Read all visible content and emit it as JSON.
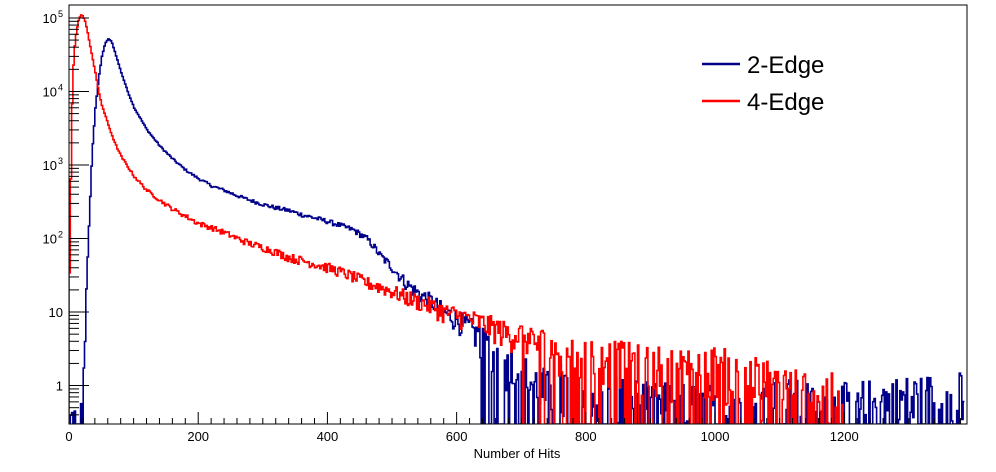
{
  "chart_data": {
    "type": "line",
    "title": "",
    "xlabel": "Number of Hits",
    "ylabel": "",
    "xlim": [
      0,
      1390
    ],
    "ylim": [
      0.3,
      150000
    ],
    "y_scale": "log",
    "grid": false,
    "legend_position": "top-right",
    "x_ticks": [
      "0",
      "200",
      "400",
      "600",
      "800",
      "1000",
      "1200"
    ],
    "y_ticks": [
      {
        "value": 1,
        "base": "1",
        "exp": ""
      },
      {
        "value": 10,
        "base": "10",
        "exp": ""
      },
      {
        "value": 100,
        "base": "10",
        "exp": "2"
      },
      {
        "value": 1000,
        "base": "10",
        "exp": "3"
      },
      {
        "value": 10000,
        "base": "10",
        "exp": "4"
      },
      {
        "value": 100000,
        "base": "10",
        "exp": "5"
      }
    ],
    "series": [
      {
        "name": "2-Edge",
        "color": "#00008b",
        "x": [
          0,
          10,
          17,
          20,
          25,
          30,
          35,
          40,
          45,
          50,
          55,
          60,
          65,
          70,
          80,
          90,
          100,
          120,
          140,
          160,
          180,
          200,
          220,
          240,
          260,
          280,
          300,
          320,
          340,
          360,
          380,
          400,
          420,
          440,
          460,
          470,
          480,
          500,
          520,
          540,
          560,
          580,
          600,
          620,
          640,
          660,
          680,
          700,
          720,
          740,
          760,
          780,
          800,
          820,
          840,
          860,
          900,
          1000,
          1100,
          1150,
          1200,
          1280,
          1385
        ],
        "y": [
          0.3,
          0.3,
          0.3,
          0.3,
          10,
          150,
          1500,
          6000,
          15000,
          30000,
          45000,
          52000,
          48000,
          35000,
          18000,
          10000,
          6000,
          3000,
          1800,
          1200,
          850,
          650,
          520,
          450,
          380,
          330,
          290,
          260,
          240,
          210,
          190,
          170,
          150,
          130,
          100,
          80,
          60,
          40,
          25,
          18,
          14,
          10,
          8,
          6,
          4,
          3,
          2,
          1.5,
          1,
          0.8,
          1,
          0.8,
          0.7,
          0.6,
          0.7,
          0.6,
          0.5,
          0.5,
          0.6,
          0.5,
          0.5,
          0.6,
          0.7
        ]
      },
      {
        "name": "4-Edge",
        "color": "#ff0000",
        "x": [
          0,
          3,
          5,
          7,
          10,
          13,
          15,
          18,
          21,
          24,
          27,
          30,
          35,
          40,
          45,
          50,
          60,
          70,
          80,
          100,
          120,
          140,
          160,
          180,
          200,
          220,
          240,
          260,
          280,
          300,
          320,
          340,
          360,
          380,
          400,
          420,
          440,
          460,
          480,
          500,
          520,
          540,
          560,
          580,
          600,
          620,
          640,
          660,
          680,
          700,
          720,
          740,
          760,
          780,
          800,
          820,
          850,
          900,
          950,
          1000,
          1050,
          1100,
          1150,
          1200
        ],
        "y": [
          30,
          3000,
          15000,
          35000,
          60000,
          85000,
          100000,
          110000,
          105000,
          90000,
          70000,
          50000,
          30000,
          18000,
          10000,
          6500,
          3500,
          2000,
          1300,
          700,
          450,
          330,
          250,
          200,
          160,
          140,
          120,
          100,
          85,
          75,
          65,
          55,
          50,
          45,
          40,
          35,
          30,
          25,
          22,
          19,
          16,
          14,
          12,
          10,
          9,
          8,
          7,
          6,
          5,
          5,
          4,
          4,
          3,
          3,
          3,
          2.5,
          2.5,
          2,
          2,
          2,
          1.5,
          1,
          0.8,
          0.6
        ]
      }
    ]
  }
}
